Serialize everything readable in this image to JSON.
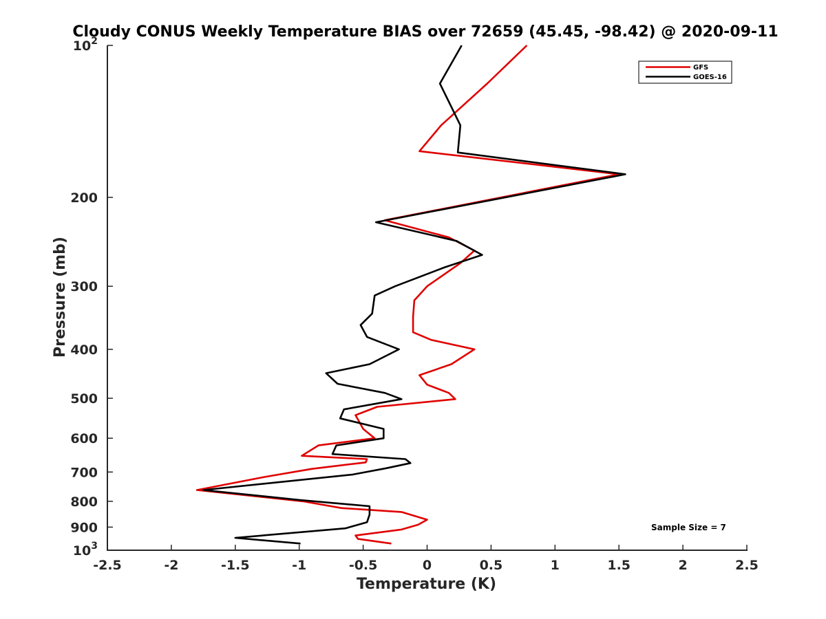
{
  "chart_data": {
    "type": "line",
    "title": "Cloudy CONUS Weekly Temperature BIAS over 72659 (45.45, -98.42) @ 2020-09-11",
    "xlabel": "Temperature (K)",
    "ylabel": "Pressure (mb)",
    "xlim": [
      -2.5,
      2.5
    ],
    "ylim": [
      100,
      1000
    ],
    "y_scale": "log",
    "y_reversed": true,
    "grid": false,
    "legend_position": "top-right",
    "x_ticks": [
      "-2.5",
      "-2",
      "-1.5",
      "-1",
      "-0.5",
      "0",
      "0.5",
      "1",
      "1.5",
      "2",
      "2.5"
    ],
    "y_ticks": [
      {
        "value": 100,
        "base": "10",
        "exp": "2",
        "label": ""
      },
      {
        "value": 200,
        "base": "",
        "exp": "",
        "label": "200"
      },
      {
        "value": 300,
        "base": "",
        "exp": "",
        "label": "300"
      },
      {
        "value": 400,
        "base": "",
        "exp": "",
        "label": "400"
      },
      {
        "value": 500,
        "base": "",
        "exp": "",
        "label": "500"
      },
      {
        "value": 600,
        "base": "",
        "exp": "",
        "label": "600"
      },
      {
        "value": 700,
        "base": "",
        "exp": "",
        "label": "700"
      },
      {
        "value": 800,
        "base": "",
        "exp": "",
        "label": "800"
      },
      {
        "value": 900,
        "base": "",
        "exp": "",
        "label": "900"
      },
      {
        "value": 1000,
        "base": "10",
        "exp": "3",
        "label": ""
      }
    ],
    "annotation": "Sample Size = 7",
    "series": [
      {
        "name": "GFS",
        "color": "#e00000",
        "x": [
          0.78,
          0.47,
          0.11,
          -0.06,
          1.5,
          -0.33,
          0.17,
          0.37,
          0.26,
          0.0,
          -0.1,
          -0.11,
          -0.11,
          0.03,
          0.37,
          0.19,
          -0.06,
          0.0,
          0.17,
          0.22,
          -0.39,
          -0.56,
          -0.5,
          -0.41,
          -0.85,
          -0.98,
          -0.47,
          -0.48,
          -0.9,
          -1.26,
          -1.8,
          -0.97,
          -0.67,
          -0.2,
          0.0,
          -0.07,
          -0.2,
          -0.56,
          -0.54,
          -0.28
        ],
        "y": [
          100,
          119,
          144,
          162,
          180,
          222,
          240,
          255,
          270,
          300,
          320,
          345,
          370,
          383,
          400,
          428,
          450,
          470,
          488,
          502,
          520,
          540,
          575,
          600,
          620,
          650,
          660,
          670,
          690,
          715,
          760,
          800,
          825,
          840,
          870,
          890,
          910,
          935,
          950,
          970
        ]
      },
      {
        "name": "GOES-16",
        "color": "#000000",
        "x": [
          0.27,
          0.1,
          0.26,
          0.24,
          1.55,
          -0.4,
          0.23,
          0.43,
          0.14,
          -0.25,
          -0.41,
          -0.43,
          -0.52,
          -0.47,
          -0.22,
          -0.45,
          -0.79,
          -0.7,
          -0.33,
          -0.2,
          -0.65,
          -0.68,
          -0.34,
          -0.34,
          -0.71,
          -0.74,
          -0.17,
          -0.13,
          -0.32,
          -0.58,
          -1.75,
          -1.0,
          -0.45,
          -0.45,
          -0.47,
          -0.64,
          -1.5,
          -0.99
        ],
        "y": [
          100,
          119,
          144,
          163,
          180,
          224,
          244,
          260,
          275,
          300,
          313,
          340,
          358,
          378,
          400,
          428,
          446,
          468,
          488,
          502,
          526,
          548,
          575,
          600,
          620,
          645,
          660,
          672,
          688,
          708,
          760,
          795,
          818,
          850,
          880,
          905,
          945,
          970
        ]
      }
    ]
  }
}
